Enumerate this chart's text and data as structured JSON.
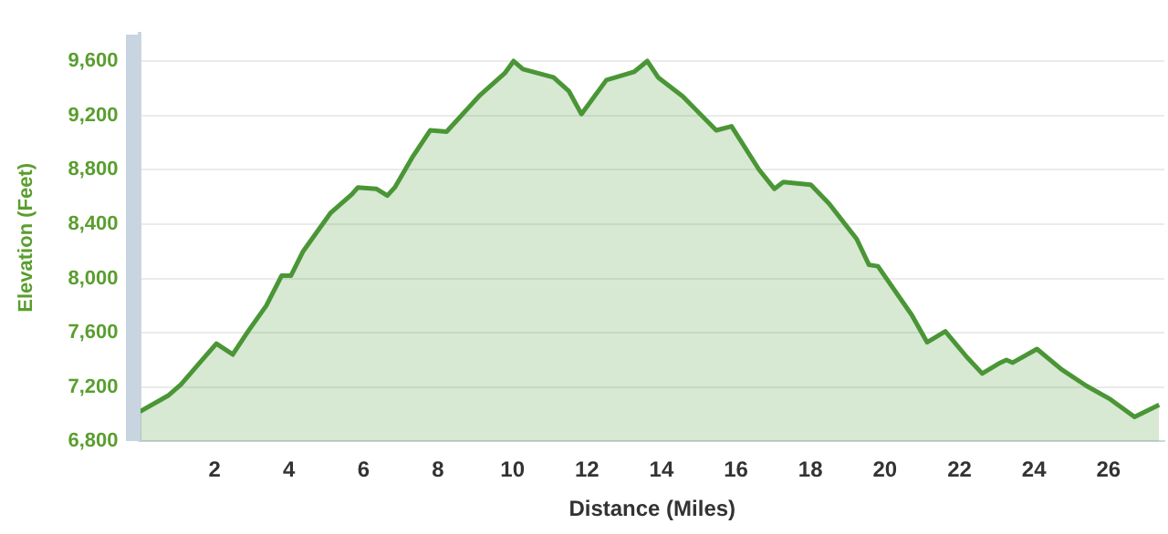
{
  "chart_data": {
    "type": "area",
    "xlabel": "Distance (Miles)",
    "ylabel": "Elevation (Feet)",
    "x": [
      0,
      0.77,
      1.1,
      1.67,
      2.05,
      2.49,
      2.9,
      3.39,
      3.8,
      4.05,
      4.38,
      5.11,
      5.69,
      5.85,
      6.34,
      6.64,
      6.84,
      7.33,
      7.79,
      8.23,
      9.13,
      9.79,
      10.03,
      10.28,
      11.1,
      11.51,
      11.85,
      12.52,
      13.26,
      13.62,
      13.91,
      14.57,
      15.47,
      15.88,
      16.62,
      17.03,
      17.27,
      18.01,
      18.5,
      19.24,
      19.57,
      19.81,
      20.72,
      21.13,
      21.62,
      22.2,
      22.61,
      23.1,
      23.26,
      23.43,
      24.08,
      24.74,
      25.4,
      26.05,
      26.7,
      27.36
    ],
    "series": [
      {
        "color": "#4a9636",
        "values": [
          7020,
          7140,
          7220,
          7400,
          7520,
          7440,
          7610,
          7800,
          8020,
          8020,
          8200,
          8480,
          8620,
          8670,
          8660,
          8610,
          8670,
          8900,
          9090,
          9080,
          9350,
          9510,
          9600,
          9540,
          9480,
          9380,
          9210,
          9460,
          9520,
          9600,
          9480,
          9340,
          9090,
          9120,
          8800,
          8660,
          8710,
          8690,
          8550,
          8290,
          8100,
          8090,
          7730,
          7530,
          7610,
          7420,
          7300,
          7380,
          7400,
          7380,
          7480,
          7330,
          7210,
          7110,
          6980,
          7070
        ]
      }
    ],
    "xlim": [
      0,
      27.5
    ],
    "xticks": [
      2,
      4,
      6,
      8,
      10,
      12,
      14,
      16,
      18,
      20,
      22,
      24,
      26
    ],
    "ylim": [
      6800,
      9800
    ],
    "yticks": [
      {
        "value": 6800,
        "label": "6,800"
      },
      {
        "value": 7200,
        "label": "7,200"
      },
      {
        "value": 7600,
        "label": "7,600"
      },
      {
        "value": 8000,
        "label": "8,000"
      },
      {
        "value": 8400,
        "label": "8,400"
      },
      {
        "value": 8800,
        "label": "8,800"
      },
      {
        "value": 9200,
        "label": "9,200"
      },
      {
        "value": 9600,
        "label": "9,600"
      }
    ],
    "grid": "y",
    "legend": false,
    "marker": "none",
    "line_style": "solid"
  }
}
